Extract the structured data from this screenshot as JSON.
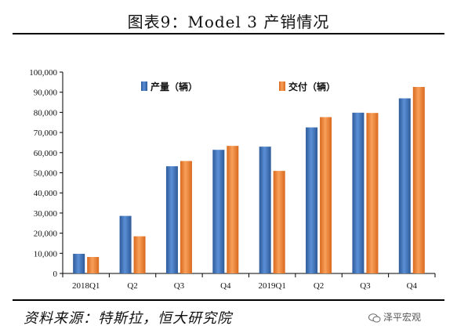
{
  "title": "图表9：Model 3 产销情况",
  "source": "资料来源：特斯拉，恒大研究院",
  "watermark": "泽平宏观",
  "watermark_icon": "wechat-icon",
  "colors": {
    "production": "#3e72b8",
    "deliveries": "#ee8332"
  },
  "chart_data": {
    "type": "bar",
    "categories": [
      "2018Q1",
      "Q2",
      "Q3",
      "Q4",
      "2019Q1",
      "Q2",
      "Q3",
      "Q4"
    ],
    "series": [
      {
        "name": "产量（辆）",
        "values": [
          9766,
          28578,
          53239,
          61394,
          62975,
          72531,
          79837,
          86958
        ]
      },
      {
        "name": "交付（辆）",
        "values": [
          8182,
          18449,
          55840,
          63359,
          50928,
          77634,
          79703,
          92620
        ]
      }
    ],
    "ylim": [
      0,
      100000
    ],
    "yticks": [
      "0",
      "10,000",
      "20,000",
      "30,000",
      "40,000",
      "50,000",
      "60,000",
      "70,000",
      "80,000",
      "90,000",
      "100,000"
    ],
    "legend_position": "top-left",
    "grid": false
  }
}
